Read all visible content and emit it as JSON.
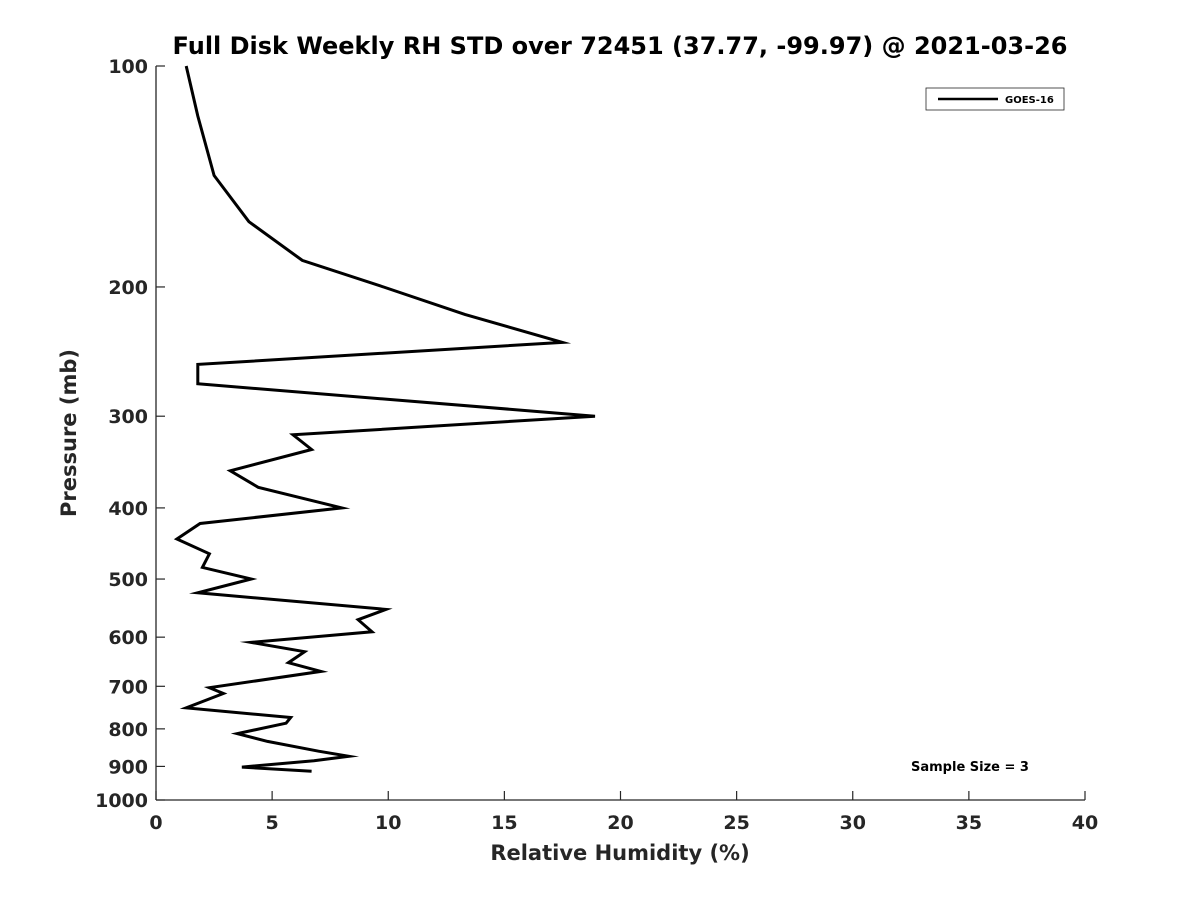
{
  "chart_data": {
    "type": "line",
    "title": "Full Disk Weekly RH STD over 72451 (37.77, -99.97) @ 2021-03-26",
    "xlabel": "Relative Humidity (%)",
    "ylabel": "Pressure (mb)",
    "xlim": [
      0,
      40
    ],
    "ylim": [
      100,
      1000
    ],
    "yscale": "log",
    "y_reversed": true,
    "xticks": [
      0,
      5,
      10,
      15,
      20,
      25,
      30,
      35,
      40
    ],
    "xtick_labels": [
      "0",
      "5",
      "10",
      "15",
      "20",
      "25",
      "30",
      "35",
      "40"
    ],
    "yticks": [
      100,
      200,
      300,
      400,
      500,
      600,
      700,
      800,
      900,
      1000
    ],
    "ytick_labels": [
      "100",
      "200",
      "300",
      "400",
      "500",
      "600",
      "700",
      "800",
      "900",
      "1000"
    ],
    "grid": false,
    "legend": {
      "position": "top-right",
      "entries": [
        "GOES-16"
      ]
    },
    "annotation": "Sample Size = 3",
    "series": [
      {
        "name": "GOES-16",
        "color": "#000000",
        "x": [
          1.3,
          1.8,
          2.5,
          4.0,
          6.3,
          9.8,
          13.3,
          17.5,
          1.8,
          1.8,
          18.9,
          5.9,
          6.7,
          3.2,
          4.4,
          8.0,
          1.9,
          0.9,
          2.3,
          2.0,
          4.1,
          1.8,
          9.9,
          8.7,
          9.3,
          4.1,
          6.4,
          5.7,
          7.1,
          2.3,
          2.9,
          1.3,
          5.8,
          5.6,
          3.5,
          4.8,
          7.0,
          8.3,
          6.8,
          3.7,
          6.7
        ],
        "y": [
          100,
          117,
          141,
          163,
          184,
          200,
          218,
          238,
          255,
          271,
          300,
          318,
          333,
          356,
          375,
          400,
          420,
          441,
          462,
          482,
          500,
          522,
          550,
          568,
          590,
          610,
          628,
          650,
          668,
          703,
          716,
          749,
          772,
          786,
          812,
          832,
          858,
          872,
          884,
          902,
          914
        ]
      }
    ]
  }
}
